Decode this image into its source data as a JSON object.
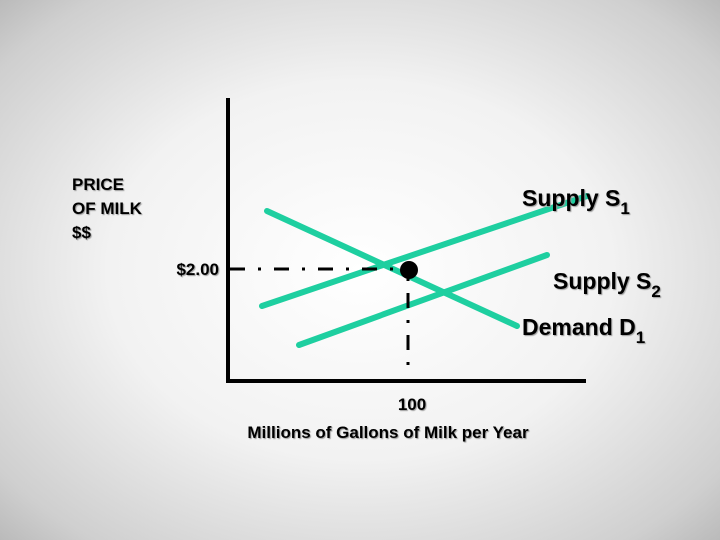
{
  "y_axis_label": [
    "PRICE",
    "OF MILK",
    "$$"
  ],
  "x_axis_label": "Millions of Gallons of Milk per Year",
  "price_label": "$2.00",
  "quantity_label": "100",
  "supply1": {
    "text": "Supply S",
    "sub": "1"
  },
  "supply2": {
    "text": "Supply S",
    "sub": "2"
  },
  "demand": {
    "text": "Demand D",
    "sub": "1"
  },
  "colors": {
    "curve": "#1ecfa0",
    "axis": "#000000",
    "guide": "#000000"
  }
}
